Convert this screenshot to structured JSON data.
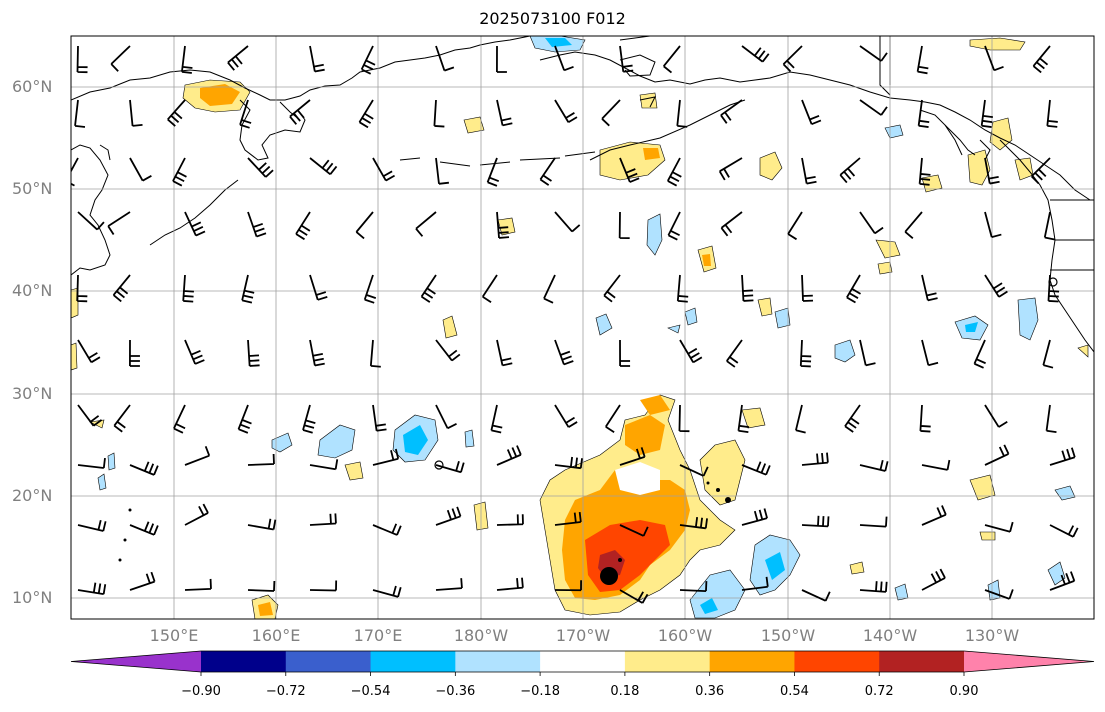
{
  "title": "2025073100 F012",
  "lat_labels": [
    "60°N",
    "50°N",
    "40°N",
    "30°N",
    "20°N",
    "10°N"
  ],
  "lon_labels": [
    "150°E",
    "160°E",
    "170°E",
    "180°W",
    "170°W",
    "160°W",
    "150°W",
    "140°W",
    "130°W"
  ],
  "colorbar": {
    "labels": [
      "−0.90",
      "−0.72",
      "−0.54",
      "−0.36",
      "−0.18",
      "0.18",
      "0.36",
      "0.54",
      "0.72",
      "0.90"
    ],
    "colors": [
      "#9932CC",
      "#00008B",
      "#3A5FCD",
      "#00BFFF",
      "#B0E2FF",
      "#FFFFFF",
      "#FFEC8B",
      "#FFA500",
      "#FF4500",
      "#B22222",
      "#FF82AB"
    ]
  }
}
